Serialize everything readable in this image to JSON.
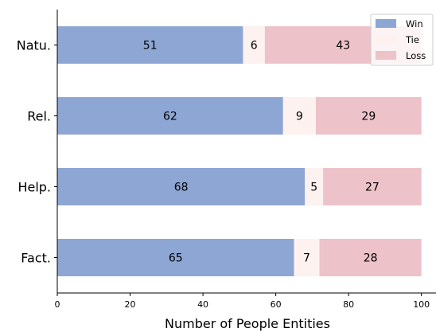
{
  "chart_data": {
    "type": "bar",
    "orientation": "horizontal",
    "stacked": true,
    "categories": [
      "Natu.",
      "Rel.",
      "Help.",
      "Fact."
    ],
    "series": [
      {
        "name": "Win",
        "values": [
          51,
          62,
          68,
          65
        ],
        "color": "#8da6d4"
      },
      {
        "name": "Tie",
        "values": [
          6,
          9,
          5,
          7
        ],
        "color": "#fdf2ef"
      },
      {
        "name": "Loss",
        "values": [
          43,
          29,
          27,
          28
        ],
        "color": "#edc2c9"
      }
    ],
    "xlabel": "Number of People Entities",
    "ylabel": "",
    "xlim": [
      0,
      104
    ],
    "xticks": [
      0,
      20,
      40,
      60,
      80,
      100
    ],
    "grid": false,
    "legend": "top-right"
  }
}
